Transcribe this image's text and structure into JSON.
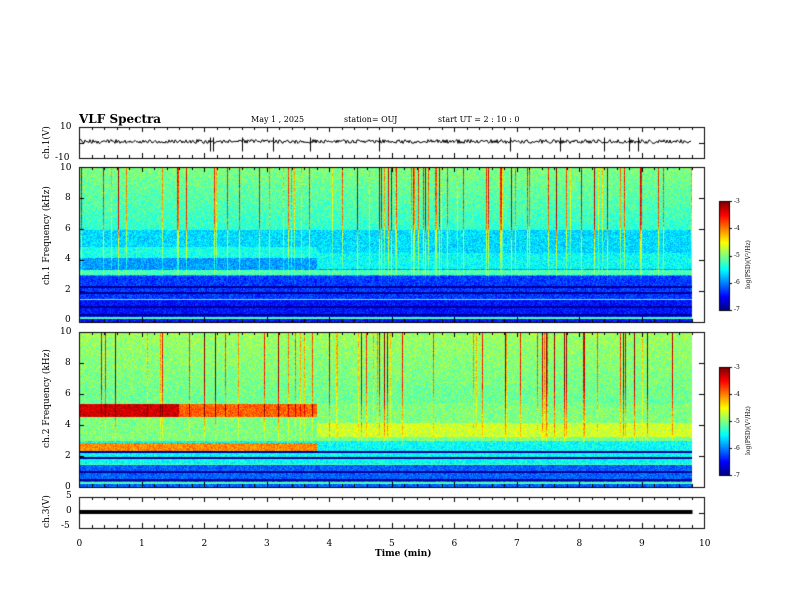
{
  "header": {
    "title": "VLF Spectra",
    "date": "May 1 , 2025",
    "station": "station= OUJ",
    "start": "start UT = 2 : 10 : 0"
  },
  "chart_data": [
    {
      "type": "line",
      "name": "ch1-waveform",
      "ylabel": "ch.1(V)",
      "ylim": [
        -10,
        10
      ],
      "yticks": [
        "10",
        "-10"
      ],
      "xlim": [
        0,
        10
      ],
      "baseline": 0,
      "spikes_min": [
        2.1,
        2.15,
        2.6,
        3.1,
        3.7,
        4.8,
        6.9,
        7.7,
        8.4,
        8.8,
        8.95
      ]
    },
    {
      "type": "heatmap",
      "name": "ch1-spectrogram",
      "ylabel": "ch.1\nFrequency (kHz)",
      "ylim": [
        0,
        10
      ],
      "yticks": [
        "0",
        "2",
        "4",
        "6",
        "8",
        "10"
      ],
      "xlim": [
        0,
        9.8
      ],
      "colorbar": {
        "label": "log(PSD)(V²/Hz)",
        "range": [
          -7,
          -3
        ],
        "ticks": [
          "-3",
          "-4",
          "-5",
          "-6",
          "-7"
        ]
      }
    },
    {
      "type": "heatmap",
      "name": "ch2-spectrogram",
      "ylabel": "ch.2\nFrequency (kHz)",
      "ylim": [
        0,
        10
      ],
      "yticks": [
        "0",
        "2",
        "4",
        "6",
        "8",
        "10"
      ],
      "xlim": [
        0,
        9.8
      ],
      "colorbar": {
        "label": "log(PSD)(V²/Hz)",
        "range": [
          -7,
          -3
        ],
        "ticks": [
          "-3",
          "-4",
          "-5",
          "-6",
          "-7"
        ]
      }
    },
    {
      "type": "line",
      "name": "ch3-waveform",
      "ylabel": "ch.3(V)",
      "ylim": [
        -5,
        5
      ],
      "yticks": [
        "5",
        "0",
        "-5"
      ],
      "xlim": [
        0,
        10
      ],
      "value": 0
    }
  ],
  "xaxis": {
    "label": "Time (min)",
    "ticks": [
      "0",
      "1",
      "2",
      "3",
      "4",
      "5",
      "6",
      "7",
      "8",
      "9",
      "10"
    ]
  },
  "colors": {
    "frame": "#000000",
    "waveform": "#000000"
  }
}
